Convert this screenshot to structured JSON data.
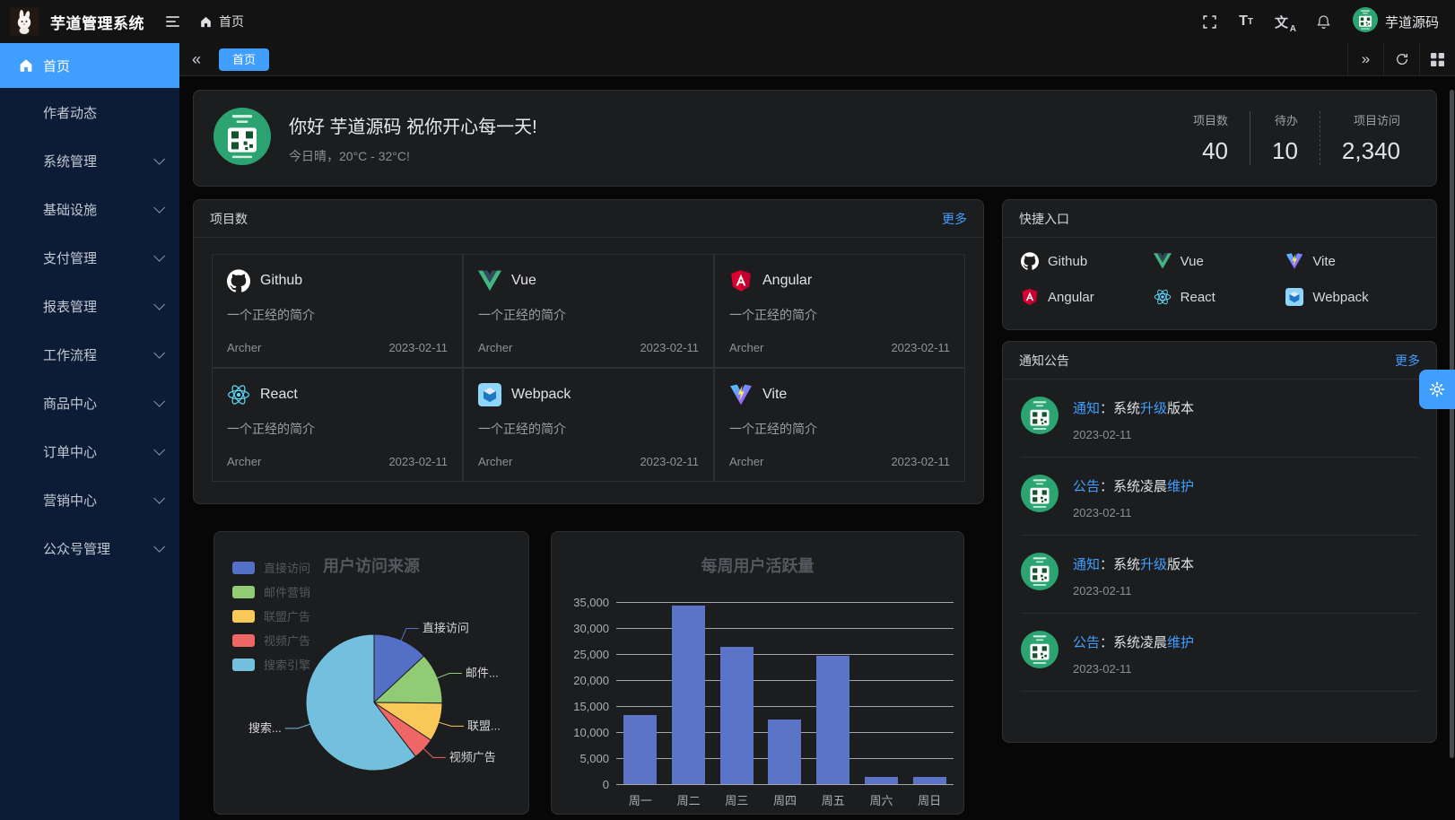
{
  "accent_color": "#409eff",
  "header": {
    "app_title": "芋道管理系统",
    "breadcrumb_home": "首页",
    "username": "芋道源码"
  },
  "sidebar": {
    "items": [
      {
        "label": "首页",
        "icon": "home",
        "active": true,
        "expandable": false
      },
      {
        "label": "作者动态",
        "active": false,
        "expandable": false
      },
      {
        "label": "系统管理",
        "active": false,
        "expandable": true
      },
      {
        "label": "基础设施",
        "active": false,
        "expandable": true
      },
      {
        "label": "支付管理",
        "active": false,
        "expandable": true
      },
      {
        "label": "报表管理",
        "active": false,
        "expandable": true
      },
      {
        "label": "工作流程",
        "active": false,
        "expandable": true
      },
      {
        "label": "商品中心",
        "active": false,
        "expandable": true
      },
      {
        "label": "订单中心",
        "active": false,
        "expandable": true
      },
      {
        "label": "营销中心",
        "active": false,
        "expandable": true
      },
      {
        "label": "公众号管理",
        "active": false,
        "expandable": true
      }
    ]
  },
  "tabbar": {
    "tabs": [
      {
        "label": "首页",
        "active": true
      }
    ]
  },
  "welcome": {
    "greeting": "你好 芋道源码 祝你开心每一天!",
    "weather": "今日晴，20°C - 32°C!",
    "stats": [
      {
        "label": "项目数",
        "value": "40"
      },
      {
        "label": "待办",
        "value": "10"
      },
      {
        "label": "项目访问",
        "value": "2,340"
      }
    ]
  },
  "projects": {
    "title": "项目数",
    "more_label": "更多",
    "items": [
      {
        "name": "Github",
        "icon": "github",
        "desc": "一个正经的简介",
        "author": "Archer",
        "date": "2023-02-11"
      },
      {
        "name": "Vue",
        "icon": "vue",
        "desc": "一个正经的简介",
        "author": "Archer",
        "date": "2023-02-11"
      },
      {
        "name": "Angular",
        "icon": "angular",
        "desc": "一个正经的简介",
        "author": "Archer",
        "date": "2023-02-11"
      },
      {
        "name": "React",
        "icon": "react",
        "desc": "一个正经的简介",
        "author": "Archer",
        "date": "2023-02-11"
      },
      {
        "name": "Webpack",
        "icon": "webpack",
        "desc": "一个正经的简介",
        "author": "Archer",
        "date": "2023-02-11"
      },
      {
        "name": "Vite",
        "icon": "vite",
        "desc": "一个正经的简介",
        "author": "Archer",
        "date": "2023-02-11"
      }
    ]
  },
  "shortcuts": {
    "title": "快捷入口",
    "items": [
      {
        "label": "Github",
        "icon": "github"
      },
      {
        "label": "Vue",
        "icon": "vue"
      },
      {
        "label": "Vite",
        "icon": "vite"
      },
      {
        "label": "Angular",
        "icon": "angular"
      },
      {
        "label": "React",
        "icon": "react"
      },
      {
        "label": "Webpack",
        "icon": "webpack"
      }
    ]
  },
  "notices": {
    "title": "通知公告",
    "more_label": "更多",
    "items": [
      {
        "segments": [
          {
            "text": "通知",
            "highlight": true
          },
          {
            "text": "：系统",
            "highlight": false
          },
          {
            "text": "升级",
            "highlight": true
          },
          {
            "text": "版本",
            "highlight": false
          }
        ],
        "date": "2023-02-11"
      },
      {
        "segments": [
          {
            "text": "公告",
            "highlight": true
          },
          {
            "text": "：系统凌晨",
            "highlight": false
          },
          {
            "text": "维护",
            "highlight": true
          }
        ],
        "date": "2023-02-11"
      },
      {
        "segments": [
          {
            "text": "通知",
            "highlight": true
          },
          {
            "text": "：系统",
            "highlight": false
          },
          {
            "text": "升级",
            "highlight": true
          },
          {
            "text": "版本",
            "highlight": false
          }
        ],
        "date": "2023-02-11"
      },
      {
        "segments": [
          {
            "text": "公告",
            "highlight": true
          },
          {
            "text": "：系统凌晨",
            "highlight": false
          },
          {
            "text": "维护",
            "highlight": true
          }
        ],
        "date": "2023-02-11"
      }
    ]
  },
  "chart_data": [
    {
      "type": "pie",
      "title": "用户访问来源",
      "legend_position": "top-left",
      "series": [
        {
          "name": "直接访问",
          "value": 335,
          "color": "#5470c6",
          "callout": "直接访问"
        },
        {
          "name": "邮件营销",
          "value": 310,
          "color": "#91cc75",
          "callout": "邮件..."
        },
        {
          "name": "联盟广告",
          "value": 234,
          "color": "#fac858",
          "callout": "联盟..."
        },
        {
          "name": "视频广告",
          "value": 135,
          "color": "#ee6666",
          "callout": "视频广告"
        },
        {
          "name": "搜索引擎",
          "value": 1548,
          "color": "#73c0de",
          "callout": "搜索..."
        }
      ]
    },
    {
      "type": "bar",
      "title": "每周用户活跃量",
      "categories": [
        "周一",
        "周二",
        "周三",
        "周四",
        "周五",
        "周六",
        "周日"
      ],
      "values": [
        13253,
        34235,
        26321,
        12340,
        24643,
        1322,
        1324
      ],
      "ylim": [
        0,
        35000
      ],
      "ytick_step": 5000,
      "bar_color": "#5b74c8",
      "grid": true,
      "legend_position": "none"
    }
  ]
}
